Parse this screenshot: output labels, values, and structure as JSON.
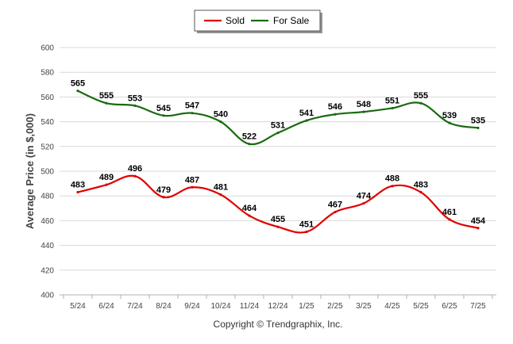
{
  "chart_data": {
    "type": "line",
    "title": "",
    "xlabel": "",
    "ylabel": "Average Price (in $,000)",
    "categories": [
      "5/24",
      "6/24",
      "7/24",
      "8/24",
      "9/24",
      "10/24",
      "11/24",
      "12/24",
      "1/25",
      "2/25",
      "3/25",
      "4/25",
      "5/25",
      "6/25",
      "7/25"
    ],
    "ylim": [
      400,
      600
    ],
    "yticks": [
      400,
      420,
      440,
      460,
      480,
      500,
      520,
      540,
      560,
      580,
      600
    ],
    "grid": true,
    "legend_position": "top-center",
    "series": [
      {
        "name": "Sold",
        "color": "#e00000",
        "values": [
          483,
          489,
          496,
          479,
          487,
          481,
          464,
          455,
          451,
          467,
          474,
          488,
          483,
          461,
          454
        ]
      },
      {
        "name": "For Sale",
        "color": "#1a6b10",
        "values": [
          565,
          555,
          553,
          545,
          547,
          540,
          522,
          531,
          541,
          546,
          548,
          551,
          555,
          539,
          535
        ]
      }
    ]
  },
  "footer": {
    "copyright": "Copyright © Trendgraphix, Inc."
  }
}
